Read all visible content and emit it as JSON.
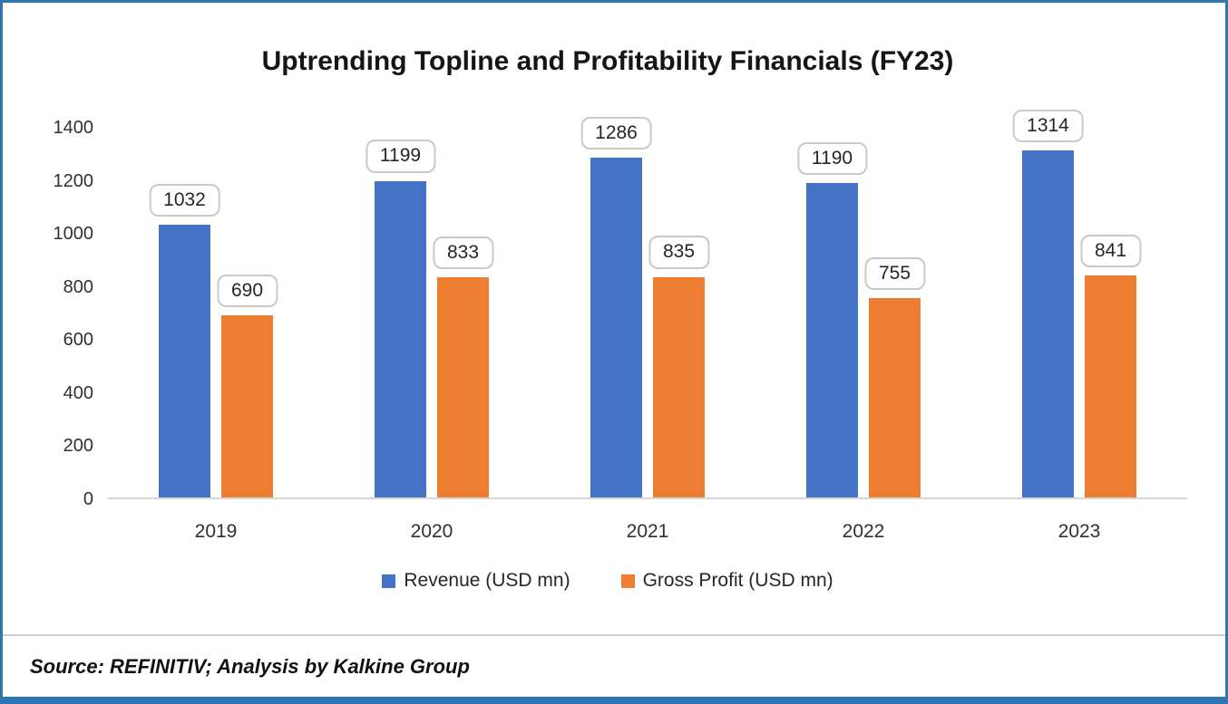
{
  "title": "Uptrending Topline and Profitability Financials (FY23)",
  "source_note": "Source: REFINITIV; Analysis by Kalkine Group",
  "colors": {
    "frame_border": "#2E75B6",
    "axis_line": "#D6D6D6",
    "label_box_border": "#C9C9C9",
    "revenue": "#4472C4",
    "gross_profit": "#ED7D31"
  },
  "chart_data": {
    "type": "bar",
    "title": "Uptrending Topline and Profitability Financials (FY23)",
    "categories": [
      "2019",
      "2020",
      "2021",
      "2022",
      "2023"
    ],
    "series": [
      {
        "id": "revenue",
        "name": "Revenue (USD mn)",
        "color": "#4472C4",
        "values": [
          1032,
          1199,
          1286,
          1190,
          1314
        ]
      },
      {
        "id": "gross-profit",
        "name": "Gross Profit (USD mn)",
        "color": "#ED7D31",
        "values": [
          690,
          833,
          835,
          755,
          841
        ]
      }
    ],
    "xlabel": "",
    "ylabel": "",
    "ylim": [
      0,
      1400
    ],
    "yticks": [
      0,
      200,
      400,
      600,
      800,
      1000,
      1200,
      1400
    ],
    "grid": false,
    "data_labels": true,
    "legend_position": "bottom"
  }
}
